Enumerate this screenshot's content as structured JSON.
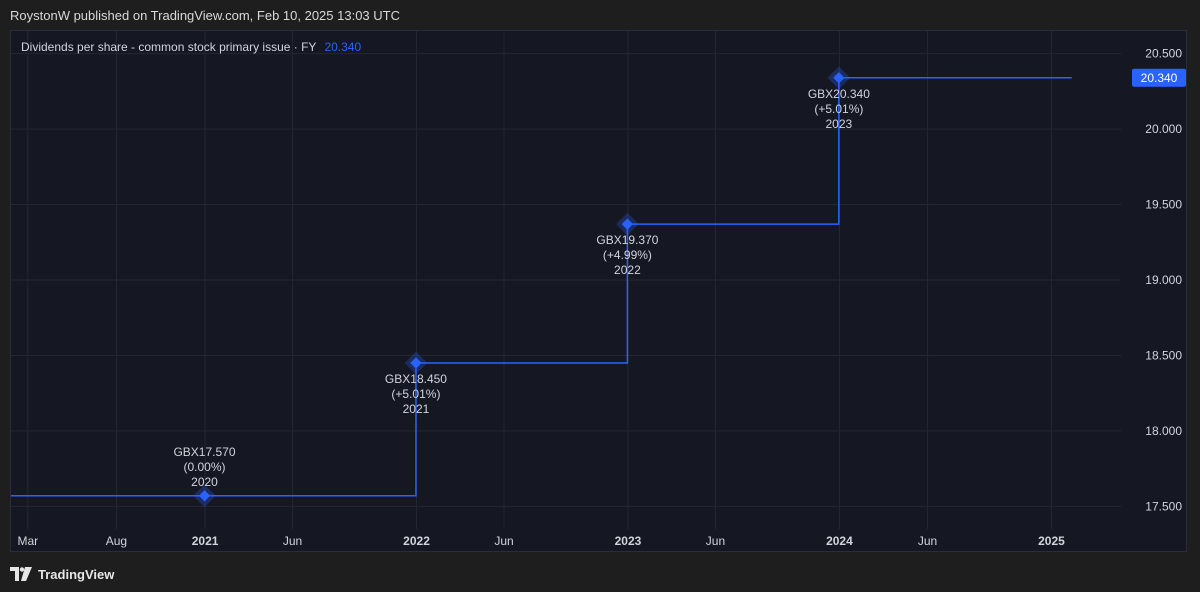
{
  "header": {
    "published_text": "RoystonW published on TradingView.com, Feb 10, 2025 13:03 UTC"
  },
  "footer": {
    "brand": "TradingView",
    "logo_icon": "tradingview-logo-icon"
  },
  "colors": {
    "line": "#2962ff",
    "marker": "#2962ff",
    "price_tag_bg": "#2962ff",
    "grid": "#232733",
    "text": "#d1d4dc",
    "legend_value": "#2962ff"
  },
  "chart_data": {
    "type": "line",
    "step": true,
    "legend": {
      "title": "Dividends per share - common stock primary issue · FY",
      "value": "20.340"
    },
    "last_value_label": "20.340",
    "y_ticks": [
      "20.500",
      "20.000",
      "19.500",
      "19.000",
      "18.500",
      "18.000",
      "17.500"
    ],
    "y_tick_values": [
      20.5,
      20.0,
      19.5,
      19.0,
      18.5,
      18.0,
      17.5
    ],
    "x_ticks": [
      {
        "label": "Mar",
        "date": "2020-03-01",
        "bold": false
      },
      {
        "label": "Aug",
        "date": "2020-08-01",
        "bold": false
      },
      {
        "label": "2021",
        "date": "2021-01-01",
        "bold": true
      },
      {
        "label": "Jun",
        "date": "2021-06-01",
        "bold": false
      },
      {
        "label": "2022",
        "date": "2022-01-01",
        "bold": true
      },
      {
        "label": "Jun",
        "date": "2022-06-01",
        "bold": false
      },
      {
        "label": "2023",
        "date": "2023-01-01",
        "bold": true
      },
      {
        "label": "Jun",
        "date": "2023-06-01",
        "bold": false
      },
      {
        "label": "2024",
        "date": "2024-01-01",
        "bold": true
      },
      {
        "label": "Jun",
        "date": "2024-06-01",
        "bold": false
      },
      {
        "label": "2025",
        "date": "2025-01-01",
        "bold": true
      }
    ],
    "x_range": [
      "2020-02-01",
      "2025-05-01"
    ],
    "ylim": [
      17.35,
      20.65
    ],
    "series": [
      {
        "points": [
          {
            "date": "2020-12-31",
            "value": 17.57,
            "label": "GBX17.570",
            "change": "(0.00%)",
            "year": "2020"
          },
          {
            "date": "2021-12-31",
            "value": 18.45,
            "label": "GBX18.450",
            "change": "(+5.01%)",
            "year": "2021"
          },
          {
            "date": "2022-12-31",
            "value": 19.37,
            "label": "GBX19.370",
            "change": "(+4.99%)",
            "year": "2022"
          },
          {
            "date": "2023-12-31",
            "value": 20.34,
            "label": "GBX20.340",
            "change": "(+5.01%)",
            "year": "2023"
          }
        ],
        "line_start": "2020-02-01",
        "line_end": "2025-02-05"
      }
    ]
  }
}
